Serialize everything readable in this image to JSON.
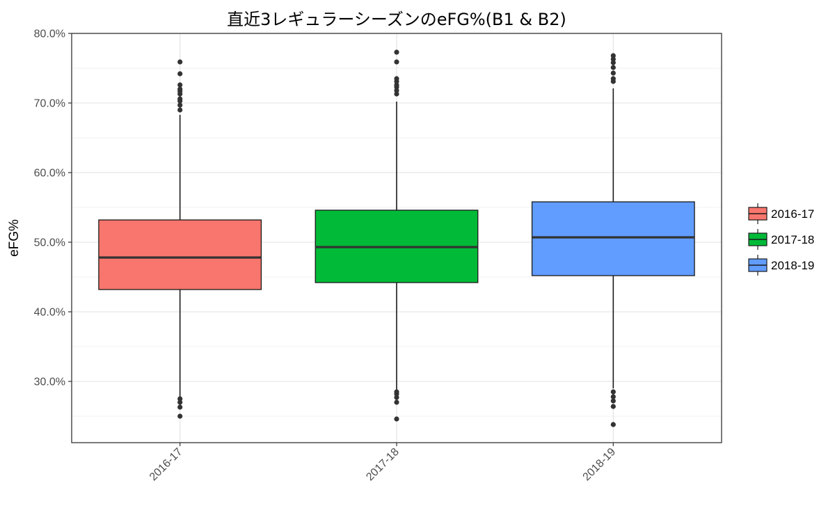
{
  "chart_data": {
    "type": "box",
    "title": "直近3レギュラーシーズンのeFG%(B1 & B2)",
    "xlabel": "",
    "ylabel": "eFG%",
    "ylim": [
      21.2,
      80.0
    ],
    "y_ticks": [
      "30.0%",
      "40.0%",
      "50.0%",
      "60.0%",
      "70.0%",
      "80.0%"
    ],
    "y_tick_values": [
      30,
      40,
      50,
      60,
      70,
      80
    ],
    "grid": true,
    "legend_position": "right",
    "categories": [
      "2016-17",
      "2017-18",
      "2018-19"
    ],
    "series": [
      {
        "name": "2016-17",
        "color": "#F8766D",
        "whisker_low": 27.8,
        "q1": 43.2,
        "median": 47.8,
        "q3": 53.2,
        "whisker_high": 68.3,
        "outliers": [
          25.0,
          26.3,
          27.0,
          27.5,
          69.0,
          69.7,
          70.3,
          70.6,
          71.3,
          71.7,
          72.0,
          72.6,
          74.2,
          75.9
        ]
      },
      {
        "name": "2017-18",
        "color": "#00BA38",
        "whisker_low": 28.2,
        "q1": 44.2,
        "median": 49.3,
        "q3": 54.6,
        "whisker_high": 70.2,
        "outliers": [
          24.6,
          27.0,
          27.7,
          28.2,
          28.5,
          71.3,
          71.8,
          72.3,
          72.6,
          73.1,
          73.5,
          75.9,
          77.3
        ]
      },
      {
        "name": "2018-19",
        "color": "#619CFF",
        "whisker_low": 29.0,
        "q1": 45.2,
        "median": 50.7,
        "q3": 55.8,
        "whisker_high": 72.1,
        "outliers": [
          23.8,
          26.4,
          27.2,
          27.8,
          28.5,
          73.1,
          73.5,
          74.3,
          75.1,
          75.8,
          76.3,
          76.8
        ]
      }
    ]
  }
}
